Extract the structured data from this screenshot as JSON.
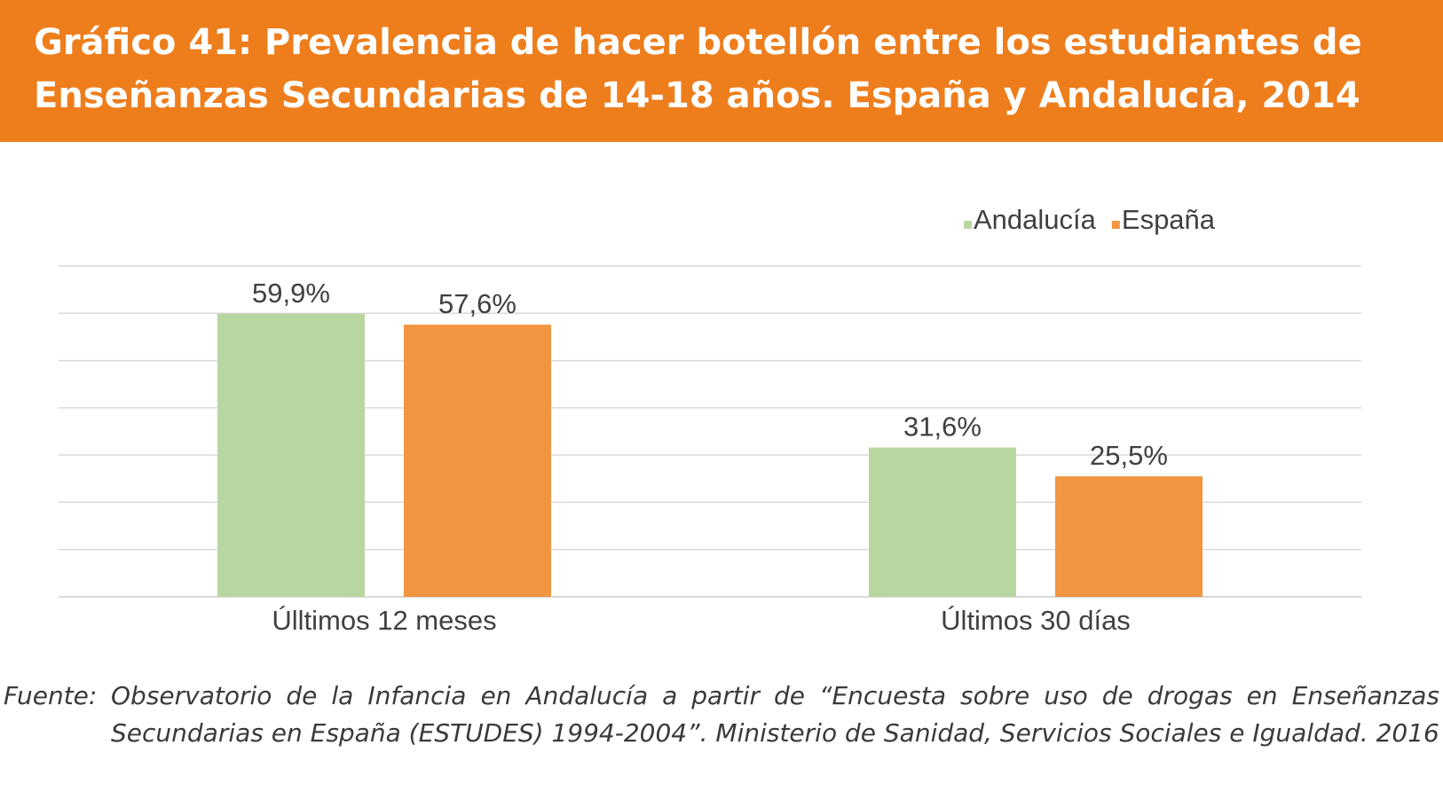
{
  "header": {
    "title": "Gráfico 41: Prevalencia de hacer botellón entre los estudiantes de Enseñanzas Secundarias de 14-18 años. España y Andalucía, 2014"
  },
  "colors": {
    "header_bg": "#EE7D1C",
    "andalucia": "#B8D7A0",
    "espana": "#F29540",
    "gridline": "#D9D9D9",
    "text": "#404040"
  },
  "chart_data": {
    "type": "bar",
    "categories": [
      "Úlltimos 12 meses",
      "Últimos 30 días"
    ],
    "series": [
      {
        "name": "Andalucía",
        "values": [
          59.9,
          31.6
        ],
        "labels": [
          "59,9%",
          "31,6%"
        ]
      },
      {
        "name": "España",
        "values": [
          57.6,
          25.5
        ],
        "labels": [
          "57,6%",
          "25,5%"
        ]
      }
    ],
    "ylim": [
      0,
      70
    ],
    "grid": true,
    "gridline_step": 10,
    "legend_position": "top-right"
  },
  "source": {
    "label": "Fuente:",
    "text": "Observatorio de la Infancia en Andalucía a partir de “Encuesta sobre uso de drogas en Enseñanzas Secundarias en España (ESTUDES) 1994-2004”. Ministerio de Sanidad, Servicios Sociales e Igualdad. 2016"
  }
}
